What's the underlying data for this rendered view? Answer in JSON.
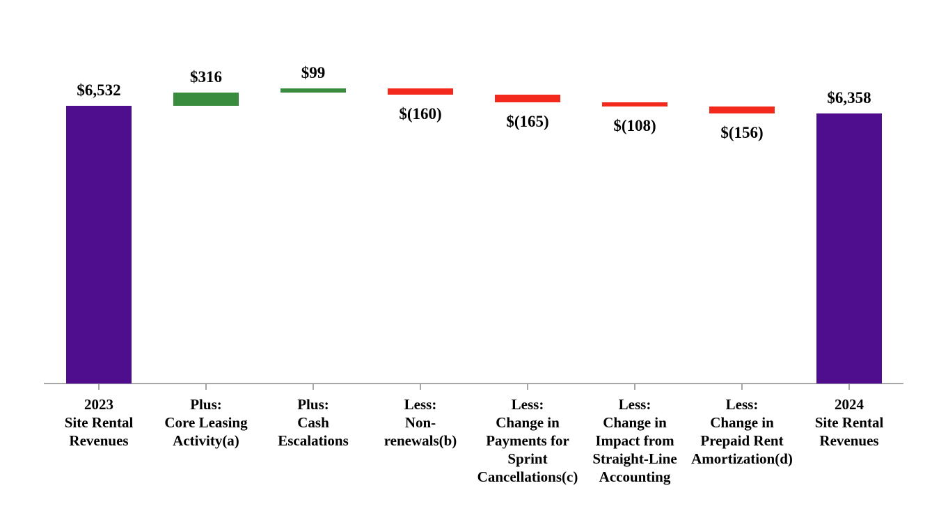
{
  "chart_data": {
    "type": "bar",
    "subtype": "waterfall",
    "title": "",
    "xlabel": "",
    "ylabel": "",
    "ylim": [
      0,
      6947
    ],
    "grid": false,
    "legend": null,
    "background": "#FFFFFF",
    "colors": {
      "total": "#4E0E8E",
      "increase": "#398B3D",
      "decrease": "#F4291D",
      "axis_line": "#A6A6A6",
      "label_text": "#000000"
    },
    "categories": [
      "2023\nSite Rental\nRevenues",
      "Plus:\nCore Leasing\nActivity(a)",
      "Plus:\nCash\nEscalations",
      "Less:\nNon-\nrenewals(b)",
      "Less:\nChange in\nPayments for\nSprint\nCancellations(c)",
      "Less:\nChange in\nImpact from\nStraight-Line\nAccounting",
      "Less:\nChange in\nPrepaid Rent\nAmortization(d)",
      "2024\nSite Rental\nRevenues"
    ],
    "steps": [
      {
        "category": "2023\nSite Rental\nRevenues",
        "label": "$6,532",
        "value": 6532,
        "kind": "total"
      },
      {
        "category": "Plus:\nCore Leasing\nActivity(a)",
        "label": "$316",
        "value": 316,
        "kind": "increase"
      },
      {
        "category": "Plus:\nCash\nEscalations",
        "label": "$99",
        "value": 99,
        "kind": "increase"
      },
      {
        "category": "Less:\nNon-\nrenewals(b)",
        "label": "$(160)",
        "value": -160,
        "kind": "decrease"
      },
      {
        "category": "Less:\nChange in\nPayments for\nSprint\nCancellations(c)",
        "label": "$(165)",
        "value": -165,
        "kind": "decrease"
      },
      {
        "category": "Less:\nChange in\nImpact from\nStraight-Line\nAccounting",
        "label": "$(108)",
        "value": -108,
        "kind": "decrease"
      },
      {
        "category": "Less:\nChange in\nPrepaid Rent\nAmortization(d)",
        "label": "$(156)",
        "value": -156,
        "kind": "decrease"
      },
      {
        "category": "2024\nSite Rental\nRevenues",
        "label": "$6,358",
        "value": 6358,
        "kind": "total"
      }
    ],
    "start_total": 6532,
    "end_total": 6358
  }
}
